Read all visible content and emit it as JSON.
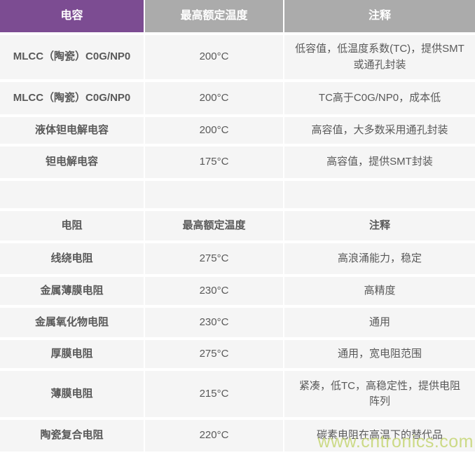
{
  "colors": {
    "header_purple": "#7c4c92",
    "header_gray": "#ababab",
    "cell_background": "#f5f5f5",
    "text": "#595959",
    "watermark": "#c9d87d"
  },
  "chart_data": {
    "type": "table",
    "columns": [
      "电容",
      "最高额定温度",
      "注释"
    ],
    "rows": [
      {
        "kind": "data",
        "name": "MLCC（陶瓷）C0G/NP0",
        "temp": "200°C",
        "note": "低容值，低温度系数(TC)，提供SMT或通孔封装"
      },
      {
        "kind": "data",
        "name": "MLCC（陶瓷）C0G/NP0",
        "temp": "200°C",
        "note": "TC高于C0G/NP0，成本低"
      },
      {
        "kind": "data",
        "name": "液体钽电解电容",
        "temp": "200°C",
        "note": "高容值，大多数采用通孔封装"
      },
      {
        "kind": "data",
        "name": "钽电解电容",
        "temp": "175°C",
        "note": "高容值，提供SMT封装"
      },
      {
        "kind": "empty",
        "name": "",
        "temp": "",
        "note": ""
      },
      {
        "kind": "subheader",
        "name": "电阻",
        "temp": "最高额定温度",
        "note": "注释"
      },
      {
        "kind": "data",
        "name": "线绕电阻",
        "temp": "275°C",
        "note": "高浪涌能力，稳定"
      },
      {
        "kind": "data",
        "name": "金属薄膜电阻",
        "temp": "230°C",
        "note": "高精度"
      },
      {
        "kind": "data",
        "name": "金属氧化物电阻",
        "temp": "230°C",
        "note": "通用"
      },
      {
        "kind": "data",
        "name": "厚膜电阻",
        "temp": "275°C",
        "note": "通用，宽电阻范围"
      },
      {
        "kind": "data",
        "name": "薄膜电阻",
        "temp": "215°C",
        "note": "紧凑，低TC，高稳定性，提供电阻阵列"
      },
      {
        "kind": "data",
        "name": "陶瓷复合电阻",
        "temp": "220°C",
        "note": "碳素电阻在高温下的替代品"
      }
    ]
  },
  "watermark": {
    "text": "www.cntronics.com"
  }
}
